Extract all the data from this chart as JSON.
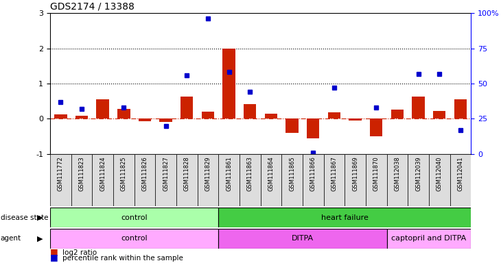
{
  "title": "GDS2174 / 13388",
  "samples": [
    "GSM111772",
    "GSM111823",
    "GSM111824",
    "GSM111825",
    "GSM111826",
    "GSM111827",
    "GSM111828",
    "GSM111829",
    "GSM111861",
    "GSM111863",
    "GSM111864",
    "GSM111865",
    "GSM111866",
    "GSM111867",
    "GSM111869",
    "GSM111870",
    "GSM112038",
    "GSM112039",
    "GSM112040",
    "GSM112041"
  ],
  "log2_ratio": [
    0.12,
    0.09,
    0.55,
    0.28,
    -0.08,
    -0.1,
    0.62,
    0.2,
    2.0,
    0.42,
    0.15,
    -0.4,
    -0.55,
    0.18,
    -0.05,
    -0.5,
    0.25,
    0.62,
    0.22,
    0.55
  ],
  "percentile_rank_pct": [
    37,
    32,
    null,
    33,
    null,
    20,
    56,
    96,
    58,
    44,
    null,
    null,
    1,
    47,
    null,
    33,
    null,
    57,
    57,
    17
  ],
  "disease_state_groups": [
    {
      "label": "control",
      "start": 0,
      "end": 8,
      "color": "#aaffaa"
    },
    {
      "label": "heart failure",
      "start": 8,
      "end": 20,
      "color": "#44cc44"
    }
  ],
  "agent_groups": [
    {
      "label": "control",
      "start": 0,
      "end": 8,
      "color": "#ffaaff"
    },
    {
      "label": "DITPA",
      "start": 8,
      "end": 16,
      "color": "#ee66ee"
    },
    {
      "label": "captopril and DITPA",
      "start": 16,
      "end": 20,
      "color": "#ffaaff"
    }
  ],
  "bar_color": "#cc2200",
  "dot_color": "#0000cc",
  "ylim_left": [
    -1,
    3
  ],
  "ylim_right": [
    0,
    100
  ]
}
